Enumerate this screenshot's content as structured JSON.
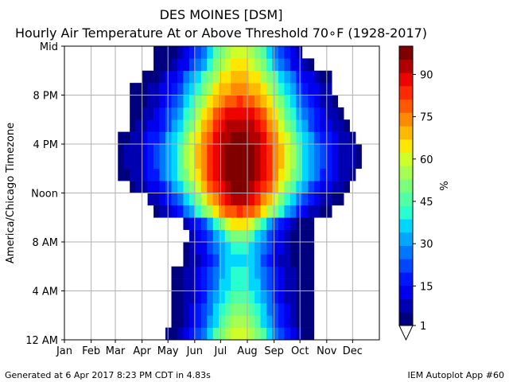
{
  "title": "DES MOINES [DSM]",
  "subtitle": "Hourly Air Temperature At or Above Threshold 70∘F (1928-2017)",
  "footer_left": "Generated at 6 Apr 2017 8:23 PM CDT in 4.83s",
  "footer_right": "IEM Autoplot App #60",
  "chart_data": {
    "type": "heatmap",
    "title": "DES MOINES [DSM]",
    "subtitle": "Hourly Air Temperature At or Above Threshold 70∘F (1928-2017)",
    "xlabel": "",
    "ylabel": "America/Chicago Timezone",
    "x_ticks": [
      "Jan",
      "Feb",
      "Mar",
      "Apr",
      "May",
      "Jun",
      "Jul",
      "Aug",
      "Sep",
      "Oct",
      "Nov",
      "Dec"
    ],
    "y_ticks": [
      "12 AM",
      "4 AM",
      "8 AM",
      "Noon",
      "4 PM",
      "8 PM",
      "Mid"
    ],
    "xlim": [
      1,
      366
    ],
    "ylim": [
      0,
      24
    ],
    "grid": true,
    "colorbar": {
      "label": "%",
      "ticks": [
        1,
        15,
        30,
        45,
        60,
        75,
        90
      ],
      "range": [
        1,
        100
      ],
      "colors": [
        "#00007f",
        "#0000b2",
        "#0000ed",
        "#0016ff",
        "#0046ff",
        "#0076ff",
        "#00a6ff",
        "#00d6ff",
        "#29ffce",
        "#52ffa4",
        "#7bff7b",
        "#a4ff52",
        "#ceff29",
        "#ffe600",
        "#ffb900",
        "#ff8900",
        "#ff5900",
        "#ff2a00",
        "#ed0400",
        "#b20000",
        "#800000"
      ],
      "under_color": "#ffffff"
    },
    "hours": [
      0,
      1,
      2,
      3,
      4,
      5,
      6,
      7,
      8,
      9,
      10,
      11,
      12,
      13,
      14,
      15,
      16,
      17,
      18,
      19,
      20,
      21,
      22,
      23
    ],
    "active_start_week": [
      17,
      18,
      18,
      18,
      18,
      18,
      20,
      20,
      21,
      20,
      15,
      14,
      11,
      9,
      9,
      9,
      9,
      11,
      11,
      11,
      11,
      13,
      15,
      15
    ],
    "active_end_week": [
      41,
      41,
      41,
      41,
      41,
      41,
      41,
      41,
      41,
      41,
      44,
      46,
      47,
      48,
      49,
      49,
      48,
      47,
      46,
      45,
      44,
      44,
      41,
      39
    ],
    "peak_week": 29.5,
    "peak_percent_by_hour": [
      62,
      55,
      50,
      45,
      42,
      40,
      38,
      40,
      50,
      65,
      82,
      92,
      98,
      100,
      100,
      100,
      98,
      95,
      90,
      82,
      75,
      70,
      65,
      62
    ]
  }
}
